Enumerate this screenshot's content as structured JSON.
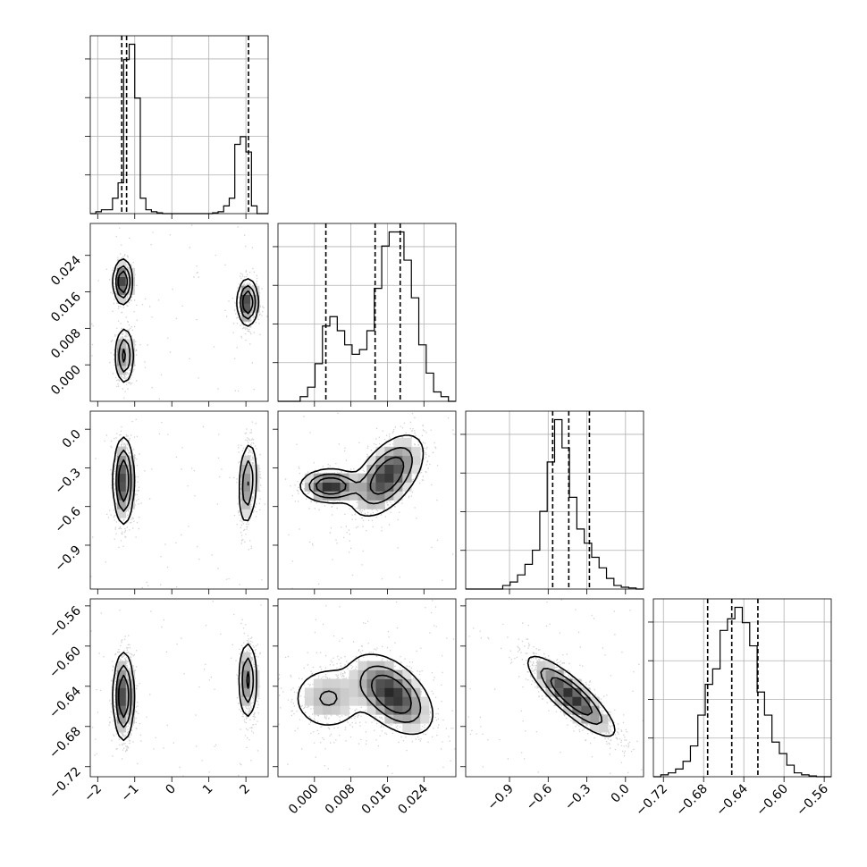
{
  "chart_data": {
    "type": "corner",
    "grid": true,
    "colors": {
      "ink": "#000000",
      "grid": "#b0b0b0",
      "background": "#ffffff"
    },
    "params": [
      {
        "name": "",
        "range": [
          -2.2,
          2.6
        ],
        "ticks": [
          -2,
          -1,
          0,
          1,
          2
        ],
        "tick_labels": [
          "−2",
          "−1",
          "0",
          "1",
          "2"
        ],
        "quantiles": [
          -1.35,
          -1.22,
          2.07
        ]
      },
      {
        "name": "",
        "range": [
          -0.008,
          0.031
        ],
        "ticks": [
          0.0,
          0.008,
          0.016,
          0.024
        ],
        "tick_labels": [
          "0.000",
          "0.008",
          "0.016",
          "0.024"
        ],
        "quantiles": [
          0.0025,
          0.0133,
          0.0188
        ]
      },
      {
        "name": "",
        "range": [
          -1.24,
          0.14
        ],
        "ticks": [
          -0.9,
          -0.6,
          -0.3,
          0.0
        ],
        "tick_labels": [
          "−0.9",
          "−0.6",
          "−0.3",
          "0.0"
        ],
        "quantiles": [
          -0.565,
          -0.44,
          -0.28
        ]
      },
      {
        "name": "",
        "range": [
          -0.73,
          -0.553
        ],
        "ticks": [
          -0.72,
          -0.68,
          -0.64,
          -0.6,
          -0.56
        ],
        "tick_labels": [
          "−0.72",
          "−0.68",
          "−0.64",
          "−0.60",
          "−0.56"
        ],
        "quantiles": [
          -0.676,
          -0.652,
          -0.626
        ]
      }
    ],
    "histograms": [
      {
        "param": 0,
        "edges_range": [
          -2.2,
          2.6
        ],
        "counts": [
          0,
          0.5,
          1,
          1,
          4,
          8,
          40,
          44,
          30,
          4,
          1,
          0.5,
          0.2,
          0,
          0,
          0,
          0,
          0,
          0,
          0,
          0,
          0,
          0.2,
          0.5,
          2,
          4,
          18,
          20,
          16,
          2,
          0,
          0
        ]
      },
      {
        "param": 1,
        "edges_range": [
          -0.008,
          0.031
        ],
        "counts": [
          0,
          0,
          0,
          1,
          3,
          8,
          16,
          18,
          15,
          12,
          10,
          11,
          15,
          24,
          33,
          36,
          36,
          30,
          22,
          12,
          6,
          2,
          1,
          0
        ]
      },
      {
        "param": 2,
        "edges_range": [
          -1.24,
          0.14
        ],
        "counts": [
          0,
          0,
          0,
          0,
          0,
          1,
          2,
          4,
          7,
          11,
          22,
          36,
          48,
          40,
          26,
          17,
          13,
          9,
          6,
          3,
          1,
          0.5,
          0.3,
          0
        ]
      },
      {
        "param": 3,
        "edges_range": [
          -0.73,
          -0.553
        ],
        "counts": [
          0,
          0.5,
          1,
          2,
          4,
          8,
          16,
          24,
          28,
          38,
          41,
          44,
          40,
          34,
          22,
          16,
          9,
          6,
          3,
          1,
          0.5,
          0.2,
          0,
          0
        ]
      }
    ],
    "pairs": [
      {
        "x_param": 0,
        "y_param": 1,
        "modes": [
          {
            "cx": -1.32,
            "cy": 0.0182,
            "sx": 0.13,
            "sy": 0.0025,
            "rho": 0.0,
            "w": 0.33
          },
          {
            "cx": -1.28,
            "cy": 0.002,
            "sx": 0.13,
            "sy": 0.0032,
            "rho": 0.0,
            "w": 0.3
          },
          {
            "cx": 2.05,
            "cy": 0.0137,
            "sx": 0.14,
            "sy": 0.0026,
            "rho": 0.0,
            "w": 0.37
          }
        ]
      },
      {
        "x_param": 0,
        "y_param": 2,
        "modes": [
          {
            "cx": -1.3,
            "cy": -0.4,
            "sx": 0.14,
            "sy": 0.17,
            "rho": 0.0,
            "w": 0.63
          },
          {
            "cx": 2.05,
            "cy": -0.42,
            "sx": 0.13,
            "sy": 0.17,
            "rho": 0.2,
            "w": 0.37
          }
        ]
      },
      {
        "x_param": 0,
        "y_param": 3,
        "modes": [
          {
            "cx": -1.3,
            "cy": -0.65,
            "sx": 0.14,
            "sy": 0.022,
            "rho": 0.0,
            "w": 0.63
          },
          {
            "cx": 2.05,
            "cy": -0.634,
            "sx": 0.13,
            "sy": 0.02,
            "rho": 0.0,
            "w": 0.37
          }
        ]
      },
      {
        "x_param": 1,
        "y_param": 2,
        "modes": [
          {
            "cx": 0.0035,
            "cy": -0.44,
            "sx": 0.0033,
            "sy": 0.065,
            "rho": 0.0,
            "w": 0.3
          },
          {
            "cx": 0.016,
            "cy": -0.36,
            "sx": 0.004,
            "sy": 0.16,
            "rho": 0.55,
            "w": 0.7
          }
        ]
      },
      {
        "x_param": 1,
        "y_param": 3,
        "modes": [
          {
            "cx": 0.003,
            "cy": -0.652,
            "sx": 0.0045,
            "sy": 0.018,
            "rho": 0.0,
            "w": 0.3
          },
          {
            "cx": 0.017,
            "cy": -0.648,
            "sx": 0.0045,
            "sy": 0.02,
            "rho": -0.5,
            "w": 0.7
          }
        ]
      },
      {
        "x_param": 2,
        "y_param": 3,
        "modes": [
          {
            "cx": -0.42,
            "cy": -0.65,
            "sx": 0.17,
            "sy": 0.02,
            "rho": -0.85,
            "w": 1.0
          }
        ]
      }
    ]
  }
}
